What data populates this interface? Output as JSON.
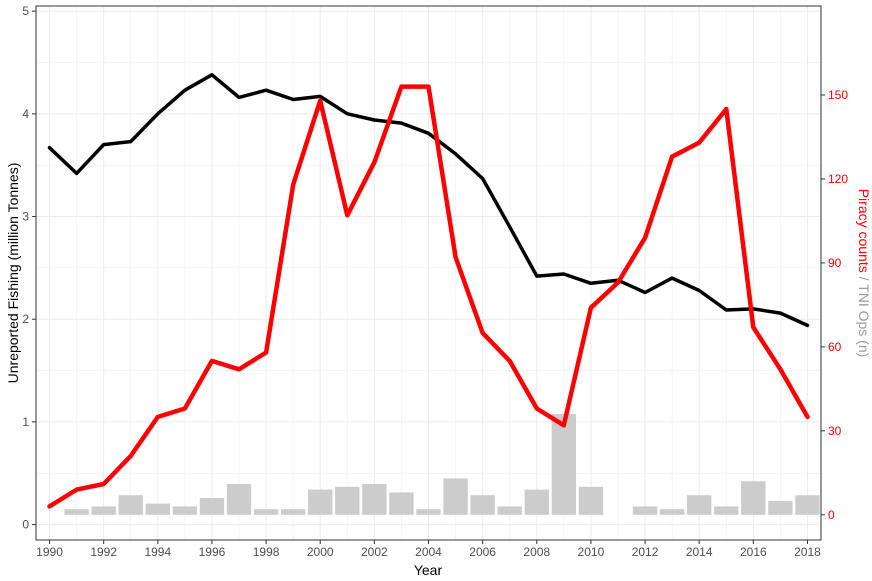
{
  "chart_data": {
    "type": "line",
    "xlabel": "Year",
    "ylabel_left": "Unreported Fishing (million Tonnes)",
    "ylabel_right_part1": "Piracy counts",
    "ylabel_right_sep": " / ",
    "ylabel_right_part2": "TNI Ops (n)",
    "xlim": [
      1989.5,
      2018.5
    ],
    "ylim_left": [
      -0.15,
      5.05
    ],
    "ylim_right": [
      -9,
      181.8
    ],
    "x_ticks": [
      1990,
      1992,
      1994,
      1996,
      1998,
      2000,
      2002,
      2004,
      2006,
      2008,
      2010,
      2012,
      2014,
      2016,
      2018
    ],
    "y_left_ticks": [
      0,
      1,
      2,
      3,
      4,
      5
    ],
    "y_right_ticks": [
      0,
      30,
      60,
      90,
      120,
      150
    ],
    "grid": true,
    "colors": {
      "unreported": "#000000",
      "piracy": "#ff0000",
      "tni": "#cccccc",
      "grid": "#ebebeb",
      "right_axis_red": "#ff0000",
      "right_axis_gray": "#999999"
    },
    "series": [
      {
        "axis": "left",
        "kind": "line",
        "x": [
          1990,
          1991,
          1992,
          1993,
          1994,
          1995,
          1996,
          1997,
          1998,
          1999,
          2000,
          2001,
          2002,
          2003,
          2004,
          2005,
          2006,
          2007,
          2008,
          2009,
          2010,
          2011,
          2012,
          2013,
          2014,
          2015,
          2016,
          2017,
          2018
        ],
        "values": [
          3.67,
          3.42,
          3.7,
          3.73,
          4.0,
          4.23,
          4.38,
          4.16,
          4.23,
          4.14,
          4.17,
          4.0,
          3.94,
          3.91,
          3.81,
          3.61,
          3.37,
          2.9,
          2.42,
          2.44,
          2.35,
          2.38,
          2.26,
          2.4,
          2.28,
          2.09,
          2.1,
          2.06,
          1.94
        ]
      },
      {
        "axis": "right",
        "kind": "line",
        "x": [
          1990,
          1991,
          1992,
          1993,
          1994,
          1995,
          1996,
          1997,
          1998,
          1999,
          2000,
          2001,
          2002,
          2003,
          2004,
          2005,
          2006,
          2007,
          2008,
          2009,
          2010,
          2011,
          2012,
          2013,
          2014,
          2015,
          2016,
          2017,
          2018
        ],
        "values": [
          3,
          9,
          11,
          21,
          35,
          38,
          55,
          52,
          58,
          118,
          148,
          107,
          126,
          153,
          153,
          92,
          65,
          55,
          38,
          32,
          74,
          83,
          99,
          128,
          133,
          145,
          67,
          52,
          35
        ]
      },
      {
        "axis": "right",
        "kind": "bar",
        "x": [
          1991,
          1992,
          1993,
          1994,
          1995,
          1996,
          1997,
          1998,
          1999,
          2000,
          2001,
          2002,
          2003,
          2004,
          2005,
          2006,
          2007,
          2008,
          2009,
          2010,
          2012,
          2013,
          2014,
          2015,
          2016,
          2017,
          2018
        ],
        "values": [
          2,
          3,
          7,
          4,
          3,
          6,
          11,
          2,
          2,
          9,
          10,
          11,
          8,
          2,
          13,
          7,
          3,
          9,
          36,
          10,
          3,
          2,
          7,
          3,
          12,
          5,
          7
        ]
      }
    ]
  }
}
